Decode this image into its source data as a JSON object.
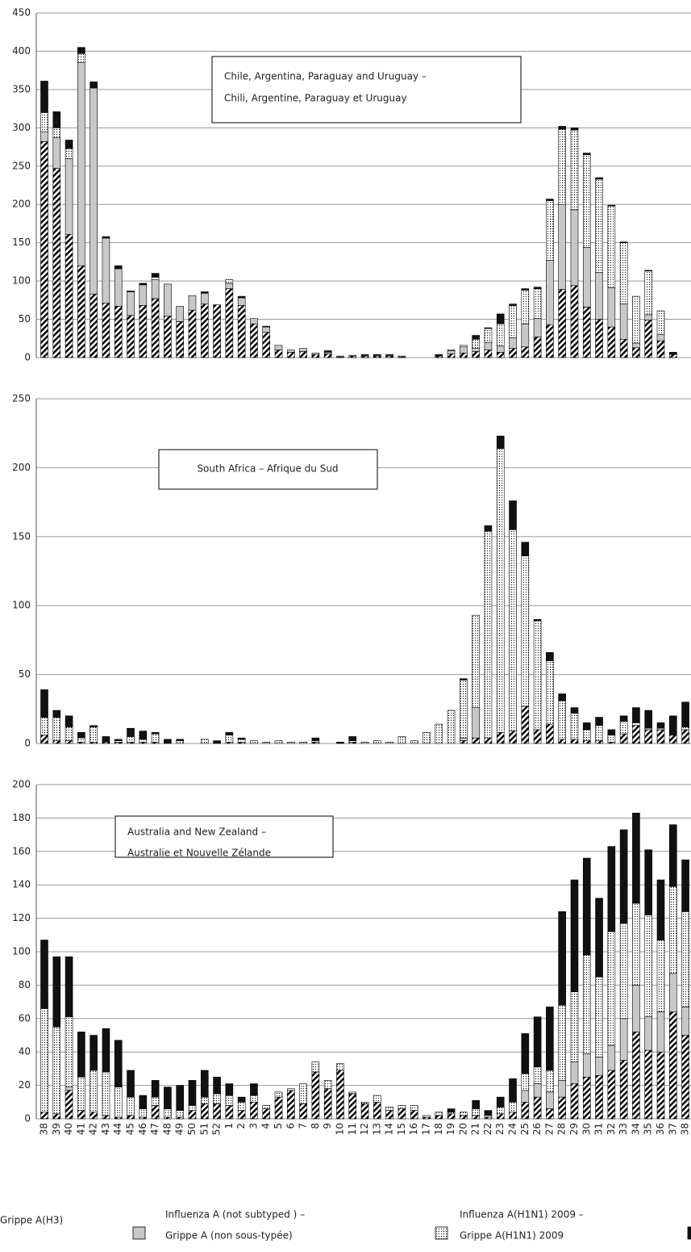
{
  "chart_data": [
    {
      "type": "bar",
      "stacked": true,
      "annotation": [
        "Chile, Argentina, Paraguay and Uruguay –",
        "Chili, Argentine, Paraguay et Uruguay"
      ],
      "ylim": [
        0,
        450
      ],
      "yticks": [
        0,
        50,
        100,
        150,
        200,
        250,
        300,
        350,
        400,
        450
      ],
      "grid": true,
      "series": [
        {
          "color": "#000000",
          "pattern": "hatch",
          "values": [
            282,
            247,
            161,
            120,
            83,
            71,
            67,
            55,
            68,
            77,
            54,
            47,
            62,
            70,
            69,
            90,
            68,
            44,
            33,
            10,
            7,
            8,
            4,
            5,
            1,
            2,
            2,
            2,
            2,
            1,
            0,
            0,
            2,
            5,
            6,
            8,
            10,
            7,
            12,
            14,
            27,
            43,
            89,
            94,
            66,
            50,
            40,
            24,
            13,
            49,
            22,
            4,
            0
          ]
        },
        {
          "color": "#c8c8c8",
          "values": [
            13,
            40,
            99,
            265,
            269,
            85,
            49,
            31,
            27,
            25,
            42,
            20,
            19,
            14,
            0,
            7,
            10,
            7,
            7,
            6,
            3,
            4,
            2,
            2,
            1,
            1,
            1,
            1,
            1,
            1,
            0,
            0,
            0,
            4,
            8,
            4,
            10,
            8,
            14,
            30,
            24,
            84,
            111,
            99,
            78,
            61,
            51,
            46,
            6,
            7,
            8,
            0,
            0
          ]
        },
        {
          "color": "#000000",
          "pattern": "dots",
          "values": [
            25,
            13,
            13,
            12,
            0,
            0,
            0,
            0,
            0,
            3,
            0,
            0,
            0,
            0,
            0,
            5,
            0,
            0,
            0,
            0,
            0,
            0,
            0,
            0,
            0,
            0,
            0,
            0,
            0,
            0,
            0,
            0,
            0,
            1,
            2,
            12,
            18,
            29,
            42,
            44,
            39,
            78,
            98,
            104,
            121,
            122,
            107,
            80,
            61,
            57,
            31,
            0,
            0
          ]
        },
        {
          "color": "#111111",
          "values": [
            41,
            21,
            11,
            8,
            8,
            2,
            4,
            1,
            2,
            5,
            0,
            0,
            0,
            2,
            0,
            0,
            2,
            0,
            1,
            0,
            0,
            0,
            0,
            2,
            0,
            0,
            1,
            1,
            1,
            0,
            0,
            0,
            2,
            0,
            0,
            5,
            1,
            13,
            2,
            2,
            2,
            2,
            4,
            3,
            2,
            2,
            1,
            1,
            0,
            1,
            0,
            3,
            0
          ]
        }
      ]
    },
    {
      "type": "bar",
      "stacked": true,
      "annotation": [
        "South Africa – Afrique du Sud"
      ],
      "ylim": [
        0,
        250
      ],
      "yticks": [
        0,
        50,
        100,
        150,
        200,
        250
      ],
      "grid": true,
      "series": [
        {
          "color": "#000000",
          "pattern": "hatch",
          "values": [
            6,
            2,
            2,
            1,
            1,
            1,
            1,
            1,
            1,
            1,
            0,
            0,
            0,
            0,
            0,
            1,
            1,
            0,
            0,
            0,
            0,
            0,
            1,
            0,
            0,
            1,
            0,
            0,
            0,
            0,
            0,
            0,
            0,
            0,
            2,
            4,
            4,
            8,
            9,
            27,
            10,
            14,
            3,
            3,
            2,
            2,
            1,
            7,
            13,
            10,
            10,
            6,
            10
          ]
        },
        {
          "color": "#c8c8c8",
          "values": [
            0,
            0,
            0,
            0,
            0,
            0,
            0,
            0,
            0,
            0,
            0,
            0,
            0,
            0,
            0,
            0,
            0,
            0,
            0,
            0,
            0,
            0,
            0,
            0,
            0,
            0,
            0,
            0,
            0,
            0,
            0,
            0,
            0,
            0,
            2,
            22,
            0,
            0,
            0,
            0,
            0,
            0,
            0,
            0,
            0,
            0,
            0,
            0,
            0,
            0,
            0,
            0,
            0
          ]
        },
        {
          "color": "#000000",
          "pattern": "dots",
          "values": [
            13,
            17,
            10,
            3,
            11,
            0,
            1,
            4,
            2,
            6,
            0,
            2,
            0,
            3,
            0,
            5,
            2,
            2,
            1,
            2,
            1,
            1,
            1,
            0,
            0,
            1,
            1,
            2,
            1,
            5,
            2,
            8,
            14,
            24,
            42,
            67,
            150,
            206,
            146,
            109,
            79,
            46,
            28,
            19,
            8,
            11,
            5,
            9,
            2,
            1,
            1,
            0,
            2
          ]
        },
        {
          "color": "#111111",
          "values": [
            20,
            5,
            8,
            4,
            1,
            4,
            1,
            6,
            6,
            1,
            3,
            1,
            0,
            0,
            2,
            2,
            1,
            0,
            0,
            0,
            0,
            0,
            2,
            0,
            1,
            3,
            0,
            0,
            0,
            0,
            0,
            0,
            0,
            0,
            1,
            0,
            4,
            9,
            21,
            10,
            1,
            6,
            5,
            4,
            5,
            6,
            4,
            4,
            11,
            13,
            4,
            14,
            18
          ]
        }
      ]
    },
    {
      "type": "bar",
      "stacked": true,
      "annotation": [
        "Australia and New Zealand –",
        "Australie et Nouvelle Zélande"
      ],
      "categories": [
        "38",
        "39",
        "40",
        "41",
        "42",
        "43",
        "44",
        "45",
        "46",
        "47",
        "48",
        "49",
        "50",
        "51",
        "52",
        "1",
        "2",
        "3",
        "4",
        "5",
        "6",
        "7",
        "8",
        "9",
        "10",
        "11",
        "12",
        "13",
        "14",
        "15",
        "16",
        "17",
        "18",
        "19",
        "20",
        "21",
        "22",
        "23",
        "24",
        "25",
        "26",
        "27",
        "28",
        "29",
        "30",
        "31",
        "32",
        "33",
        "34",
        "35",
        "36",
        "37",
        "38"
      ],
      "ylim": [
        0,
        200
      ],
      "yticks": [
        0,
        20,
        40,
        60,
        80,
        100,
        120,
        140,
        160,
        180,
        200
      ],
      "grid": true,
      "series": [
        {
          "name": [
            "Grippe A(H3)"
          ],
          "color": "#000000",
          "pattern": "hatch",
          "values": [
            4,
            3,
            17,
            5,
            4,
            2,
            1,
            2,
            1,
            8,
            1,
            1,
            5,
            9,
            9,
            8,
            5,
            10,
            6,
            13,
            17,
            9,
            28,
            18,
            29,
            15,
            9,
            10,
            5,
            6,
            5,
            1,
            2,
            3,
            2,
            2,
            1,
            3,
            4,
            10,
            13,
            6,
            13,
            21,
            25,
            26,
            29,
            35,
            52,
            41,
            40,
            64,
            50
          ]
        },
        {
          "name": [
            "Influenza A (not subtyped ) –",
            "Grippe A (non sous-typée)"
          ],
          "color": "#c8c8c8",
          "values": [
            0,
            0,
            2,
            0,
            0,
            0,
            0,
            0,
            0,
            0,
            0,
            0,
            0,
            0,
            0,
            0,
            0,
            0,
            0,
            0,
            0,
            0,
            0,
            0,
            0,
            0,
            0,
            0,
            0,
            0,
            0,
            0,
            0,
            0,
            0,
            0,
            0,
            0,
            0,
            7,
            8,
            10,
            10,
            13,
            14,
            11,
            15,
            25,
            28,
            20,
            24,
            23,
            17
          ]
        },
        {
          "name": [
            "Influenza A(H1N1) 2009 –",
            "Grippe A(H1N1) 2009"
          ],
          "color": "#000000",
          "pattern": "dots",
          "values": [
            62,
            52,
            42,
            20,
            25,
            26,
            18,
            11,
            5,
            5,
            5,
            4,
            3,
            4,
            6,
            6,
            5,
            4,
            2,
            3,
            1,
            12,
            6,
            5,
            4,
            1,
            1,
            4,
            2,
            2,
            3,
            1,
            2,
            1,
            2,
            4,
            1,
            4,
            6,
            10,
            10,
            13,
            45,
            42,
            59,
            48,
            68,
            57,
            49,
            61,
            43,
            52,
            57
          ]
        },
        {
          "color": "#111111",
          "values": [
            41,
            42,
            36,
            27,
            21,
            26,
            28,
            16,
            8,
            10,
            13,
            15,
            15,
            16,
            10,
            7,
            3,
            7,
            0,
            0,
            0,
            0,
            0,
            0,
            0,
            0,
            0,
            0,
            0,
            0,
            0,
            0,
            0,
            2,
            0,
            5,
            3,
            6,
            14,
            24,
            30,
            38,
            56,
            67,
            58,
            47,
            51,
            56,
            54,
            39,
            36,
            37,
            31
          ]
        }
      ]
    }
  ]
}
